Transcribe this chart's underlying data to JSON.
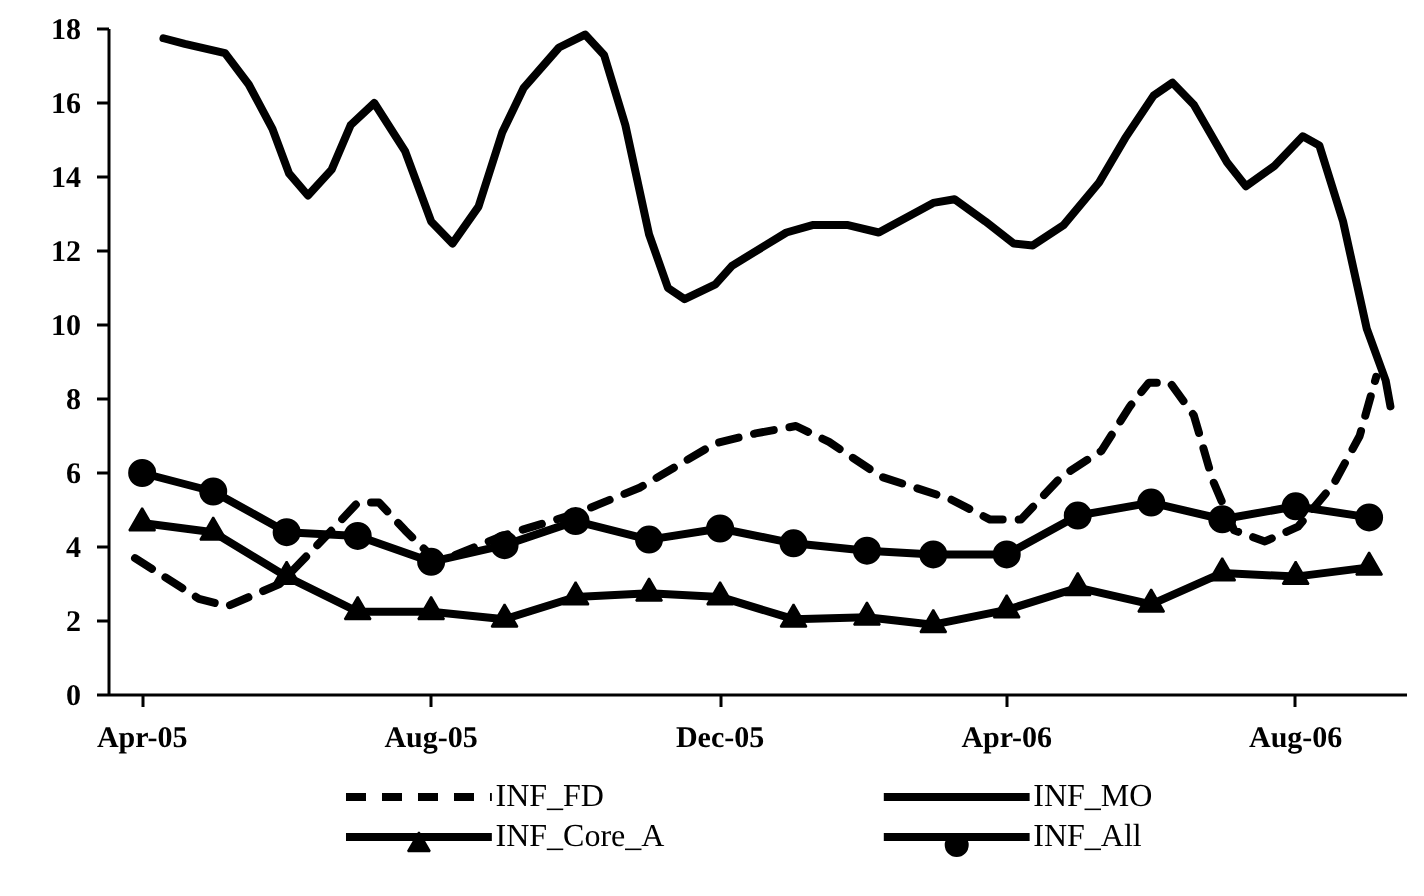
{
  "chart_data": {
    "type": "line",
    "xlim": [
      "2005-04-01",
      "2006-10-01"
    ],
    "xticks": [
      {
        "value": "2005-04-15",
        "label": "Apr-05"
      },
      {
        "value": "2005-08-15",
        "label": "Aug-05"
      },
      {
        "value": "2005-12-15",
        "label": "Dec-05"
      },
      {
        "value": "2006-04-15",
        "label": "Apr-06"
      },
      {
        "value": "2006-08-15",
        "label": "Aug-06"
      }
    ],
    "ylim": [
      0,
      18
    ],
    "yticks": [
      0,
      2,
      4,
      6,
      8,
      10,
      12,
      14,
      16,
      18
    ],
    "legend": "bottom",
    "series": [
      {
        "name": "INF_FD",
        "color": "#000000",
        "line_style": "dashed",
        "marker": "none",
        "x": [
          "2005-04-12",
          "2005-05-09",
          "2005-05-21",
          "2005-06-12",
          "2005-07-04",
          "2005-07-15",
          "2005-07-24",
          "2005-08-04",
          "2005-08-16",
          "2005-08-24",
          "2005-09-14",
          "2005-10-15",
          "2005-11-11",
          "2005-12-13",
          "2005-12-30",
          "2006-01-16",
          "2006-01-30",
          "2006-02-21",
          "2006-03-22",
          "2006-04-08",
          "2006-04-21",
          "2006-05-08",
          "2006-05-25",
          "2006-06-06",
          "2006-06-14",
          "2006-06-23",
          "2006-07-03",
          "2006-07-11",
          "2006-07-20",
          "2006-08-02",
          "2006-08-16",
          "2006-08-31",
          "2006-09-11",
          "2006-09-18"
        ],
        "values": [
          3.7,
          2.6,
          2.4,
          3.0,
          4.45,
          5.2,
          5.2,
          4.45,
          3.7,
          3.75,
          4.3,
          4.9,
          5.6,
          6.8,
          7.07,
          7.27,
          6.84,
          5.9,
          5.3,
          4.74,
          4.74,
          5.9,
          6.6,
          7.8,
          8.44,
          8.44,
          7.56,
          5.8,
          4.45,
          4.15,
          4.55,
          5.7,
          7.0,
          8.6
        ]
      },
      {
        "name": "INF_MO",
        "color": "#000000",
        "line_style": "solid",
        "marker": "none",
        "x": [
          "2005-04-24",
          "2005-05-03",
          "2005-05-20",
          "2005-05-30",
          "2005-06-09",
          "2005-06-16",
          "2005-06-24",
          "2005-07-04",
          "2005-07-12",
          "2005-07-22",
          "2005-08-04",
          "2005-08-15",
          "2005-08-24",
          "2005-09-04",
          "2005-09-14",
          "2005-09-23",
          "2005-10-08",
          "2005-10-19",
          "2005-10-27",
          "2005-11-05",
          "2005-11-15",
          "2005-11-23",
          "2005-11-30",
          "2005-12-13",
          "2005-12-20",
          "2006-01-12",
          "2006-01-23",
          "2006-02-07",
          "2006-02-20",
          "2006-03-15",
          "2006-03-24",
          "2006-04-06",
          "2006-04-18",
          "2006-04-26",
          "2006-05-09",
          "2006-05-24",
          "2006-06-04",
          "2006-06-16",
          "2006-06-24",
          "2006-07-03",
          "2006-07-17",
          "2006-07-25",
          "2006-08-06",
          "2006-08-18",
          "2006-08-25",
          "2006-09-04",
          "2006-09-14",
          "2006-09-22",
          "2006-09-24"
        ],
        "values": [
          17.75,
          17.6,
          17.35,
          16.5,
          15.3,
          14.1,
          13.5,
          14.2,
          15.4,
          16.0,
          14.7,
          12.8,
          12.2,
          13.2,
          15.2,
          16.4,
          17.5,
          17.85,
          17.3,
          15.4,
          12.45,
          11.0,
          10.7,
          11.1,
          11.6,
          12.5,
          12.7,
          12.7,
          12.5,
          13.3,
          13.4,
          12.8,
          12.2,
          12.15,
          12.7,
          13.85,
          15.05,
          16.2,
          16.55,
          15.95,
          14.4,
          13.75,
          14.3,
          15.1,
          14.85,
          12.8,
          9.9,
          8.5,
          7.8
        ]
      },
      {
        "name": "INF_Core_A",
        "color": "#000000",
        "line_style": "solid",
        "marker": "triangle",
        "x": [
          "2005-04-15",
          "2005-05-15",
          "2005-06-15",
          "2005-07-15",
          "2005-08-15",
          "2005-09-15",
          "2005-10-15",
          "2005-11-15",
          "2005-12-15",
          "2006-01-15",
          "2006-02-15",
          "2006-03-15",
          "2006-04-15",
          "2006-05-15",
          "2006-06-15",
          "2006-07-15",
          "2006-08-15",
          "2006-09-15"
        ],
        "values": [
          4.65,
          4.4,
          3.2,
          2.25,
          2.25,
          2.05,
          2.65,
          2.75,
          2.65,
          2.05,
          2.1,
          1.9,
          2.3,
          2.9,
          2.45,
          3.3,
          3.2,
          3.45
        ]
      },
      {
        "name": "INF_All",
        "color": "#000000",
        "line_style": "solid",
        "marker": "circle",
        "x": [
          "2005-04-15",
          "2005-05-15",
          "2005-06-15",
          "2005-07-15",
          "2005-08-15",
          "2005-09-15",
          "2005-10-15",
          "2005-11-15",
          "2005-12-15",
          "2006-01-15",
          "2006-02-15",
          "2006-03-15",
          "2006-04-15",
          "2006-05-15",
          "2006-06-15",
          "2006-07-15",
          "2006-08-15",
          "2006-09-15"
        ],
        "values": [
          6.0,
          5.5,
          4.4,
          4.3,
          3.6,
          4.05,
          4.7,
          4.2,
          4.5,
          4.1,
          3.9,
          3.8,
          3.8,
          4.85,
          5.2,
          4.75,
          5.1,
          4.8
        ]
      }
    ]
  }
}
